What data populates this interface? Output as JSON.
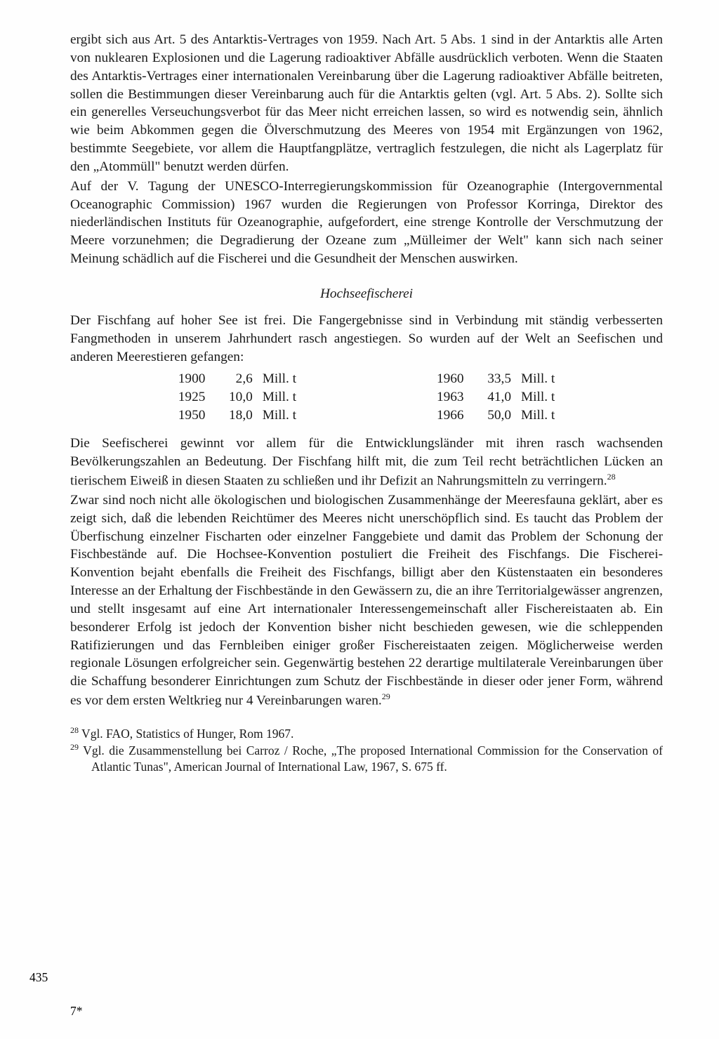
{
  "paragraphs": {
    "p1": "ergibt sich aus Art. 5 des Antarktis-Vertrages von 1959. Nach Art. 5 Abs. 1 sind in der Antarktis alle Arten von nuklearen Explosionen und die Lagerung radioaktiver Abfälle ausdrücklich verboten. Wenn die Staaten des Antarktis-Vertrages einer internationalen Vereinbarung über die Lagerung radioaktiver Abfälle beitreten, sollen die Bestimmungen dieser Vereinbarung auch für die Antarktis gelten (vgl. Art. 5 Abs. 2). Sollte sich ein generelles Verseuchungsverbot für das Meer nicht erreichen lassen, so wird es notwendig sein, ähnlich wie beim Abkommen gegen die Ölverschmutzung des Meeres von 1954 mit Ergänzungen von 1962, bestimmte Seegebiete, vor allem die Hauptfangplätze, vertraglich festzulegen, die nicht als Lagerplatz für den „Atommüll\" benutzt werden dürfen.",
    "p2": "Auf der V. Tagung der UNESCO-Interregierungskommission für Ozeanographie (Intergovernmental Oceanographic Commission) 1967 wurden die Regierungen von Professor Korringa, Direktor des niederländischen Instituts für Ozeanographie, aufgefordert, eine strenge Kontrolle der Verschmutzung der Meere vorzunehmen; die Degradierung der Ozeane zum „Mülleimer der Welt\" kann sich nach seiner Meinung schädlich auf die Fischerei und die Gesundheit der Menschen auswirken.",
    "heading": "Hochseefischerei",
    "p3": "Der Fischfang auf hoher See ist frei. Die Fangergebnisse sind in Verbindung mit ständig verbesserten Fangmethoden in unserem Jahrhundert rasch angestiegen. So wurden auf der Welt an Seefischen und anderen Meerestieren gefangen:",
    "p4a": "Die Seefischerei gewinnt vor allem für die Entwicklungsländer mit ihren rasch wachsenden Bevölkerungszahlen an Bedeutung. Der Fischfang hilft mit, die zum Teil recht beträchtlichen Lücken an tierischem Eiweiß in diesen Staaten zu schließen und ihr Defizit an Nahrungsmitteln zu verringern.",
    "p4_fn": "28",
    "p5a": "Zwar sind noch nicht alle ökologischen und biologischen Zusammenhänge der Meeresfauna geklärt, aber es zeigt sich, daß die lebenden Reichtümer des Meeres nicht unerschöpflich sind. Es taucht das Problem der Überfischung einzelner Fischarten oder einzelner Fanggebiete und damit das Problem der Schonung der Fischbestände auf. Die Hochsee-Konvention postuliert die Freiheit des Fischfangs. Die Fischerei-Konvention bejaht ebenfalls die Freiheit des Fischfangs, billigt aber den Küstenstaaten ein besonderes Interesse an der Erhaltung der Fischbestände in den Gewässern zu, die an ihre Territorialgewässer angrenzen, und stellt insgesamt auf eine Art internationaler Interessengemeinschaft aller Fischereistaaten ab. Ein besonderer Erfolg ist jedoch der Konvention bisher nicht beschieden gewesen, wie die schleppenden Ratifizierungen und das Fernbleiben einiger großer Fischereistaaten zeigen. Möglicherweise werden regionale Lösungen erfolgreicher sein. Gegenwärtig bestehen 22 derartige multilaterale Vereinbarungen über die Schaffung besonderer Einrichtungen zum Schutz der Fischbestände in dieser oder jener Form, während es vor dem ersten Weltkrieg nur 4 Vereinbarungen waren.",
    "p5_fn": "29"
  },
  "catch_data": {
    "left": [
      {
        "year": "1900",
        "value": "2,6",
        "unit": "Mill. t"
      },
      {
        "year": "1925",
        "value": "10,0",
        "unit": "Mill. t"
      },
      {
        "year": "1950",
        "value": "18,0",
        "unit": "Mill. t"
      }
    ],
    "right": [
      {
        "year": "1960",
        "value": "33,5",
        "unit": "Mill. t"
      },
      {
        "year": "1963",
        "value": "41,0",
        "unit": "Mill. t"
      },
      {
        "year": "1966",
        "value": "50,0",
        "unit": "Mill. t"
      }
    ]
  },
  "footnotes": {
    "fn28_num": "28",
    "fn28": " Vgl. FAO, Statistics of Hunger, Rom 1967.",
    "fn29_num": "29",
    "fn29": " Vgl. die Zusammenstellung bei Carroz / Roche, „The proposed International Commission for the Conservation of Atlantic Tunas\", American Journal of International Law, 1967, S. 675 ff."
  },
  "page_number": "435",
  "signature": "7*"
}
